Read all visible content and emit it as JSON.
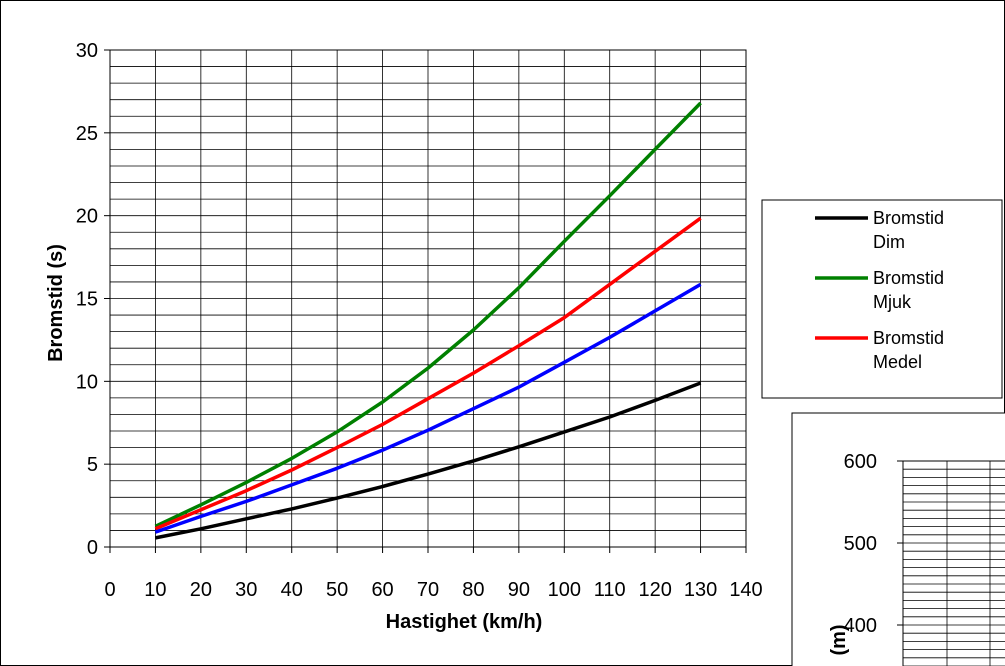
{
  "chart_data": [
    {
      "type": "line",
      "xlabel": "Hastighet (km/h)",
      "ylabel": "Bromstid (s)",
      "xlim": [
        0,
        140
      ],
      "ylim": [
        0,
        30
      ],
      "xticks": [
        "0",
        "10",
        "20",
        "30",
        "40",
        "50",
        "60",
        "70",
        "80",
        "90",
        "100",
        "110",
        "120",
        "130",
        "140"
      ],
      "yticks": [
        "0",
        "5",
        "10",
        "15",
        "20",
        "25",
        "30"
      ],
      "grid": true,
      "legend_position": "right",
      "x": [
        10,
        20,
        30,
        40,
        50,
        60,
        70,
        80,
        90,
        100,
        110,
        120,
        130
      ],
      "series": [
        {
          "name": "Bromstid Dim",
          "legend_lines": [
            "Bromstid",
            "Dim"
          ],
          "color": "#000000",
          "values": [
            0.55,
            1.1,
            1.7,
            2.3,
            2.95,
            3.65,
            4.4,
            5.2,
            6.05,
            6.95,
            7.85,
            8.85,
            9.9
          ]
        },
        {
          "name": "Bromstid Mjuk",
          "legend_lines": [
            "Bromstid",
            "Mjuk"
          ],
          "color": "#008000",
          "values": [
            1.25,
            2.55,
            3.9,
            5.35,
            6.95,
            8.75,
            10.8,
            13.1,
            15.65,
            18.45,
            21.2,
            24.0,
            26.8
          ]
        },
        {
          "name": "Bromstid Medel",
          "legend_lines": [
            "Bromstid",
            "Medel"
          ],
          "color": "#ff0000",
          "values": [
            1.1,
            2.25,
            3.4,
            4.65,
            6.0,
            7.4,
            8.95,
            10.5,
            12.15,
            13.85,
            15.85,
            17.85,
            19.85
          ]
        },
        {
          "name": "",
          "color": "#0000ff",
          "values": [
            0.9,
            1.85,
            2.75,
            3.75,
            4.75,
            5.85,
            7.05,
            8.35,
            9.65,
            11.15,
            12.65,
            14.25,
            15.85
          ]
        }
      ]
    },
    {
      "type": "line",
      "partial": true,
      "ylabel": "(m)",
      "ylim": [
        0,
        600
      ],
      "yticks": [
        "400",
        "500",
        "600"
      ],
      "grid": true,
      "series": []
    }
  ]
}
